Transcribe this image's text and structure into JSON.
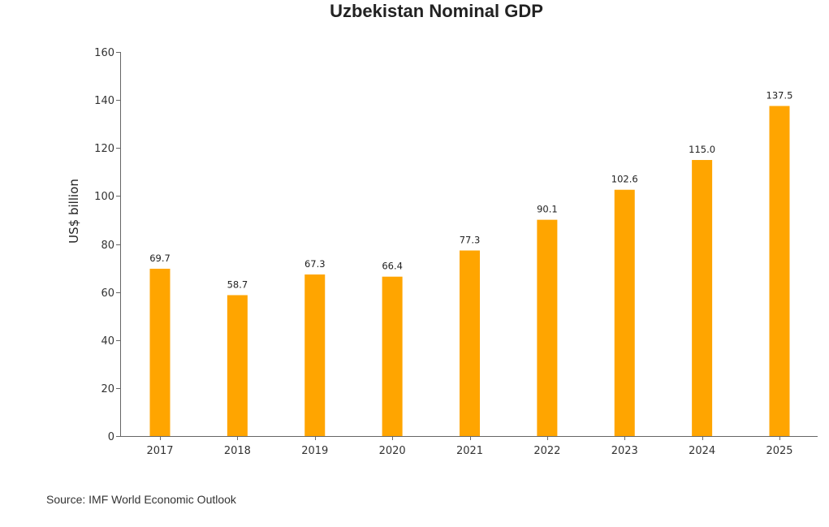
{
  "chart_data": {
    "type": "bar",
    "title": "Uzbekistan Nominal GDP",
    "xlabel": "",
    "ylabel": "US$ billion",
    "categories": [
      "2017",
      "2018",
      "2019",
      "2020",
      "2021",
      "2022",
      "2023",
      "2024",
      "2025"
    ],
    "values": [
      69.7,
      58.7,
      67.3,
      66.4,
      77.3,
      90.1,
      102.6,
      115.0,
      137.5
    ],
    "data_labels": [
      "69.7",
      "58.7",
      "67.3",
      "66.4",
      "77.3",
      "90.1",
      "102.6",
      "115.0",
      "137.5"
    ],
    "ylim": [
      0,
      160
    ],
    "yticks": [
      0,
      20,
      40,
      60,
      80,
      100,
      120,
      140,
      160
    ],
    "ytick_labels": [
      "0",
      "20",
      "40",
      "60",
      "80",
      "100",
      "120",
      "140",
      "160"
    ],
    "grid": false,
    "legend": "none",
    "bar_color": "#FFA500",
    "source": "Source: IMF World Economic Outlook"
  }
}
